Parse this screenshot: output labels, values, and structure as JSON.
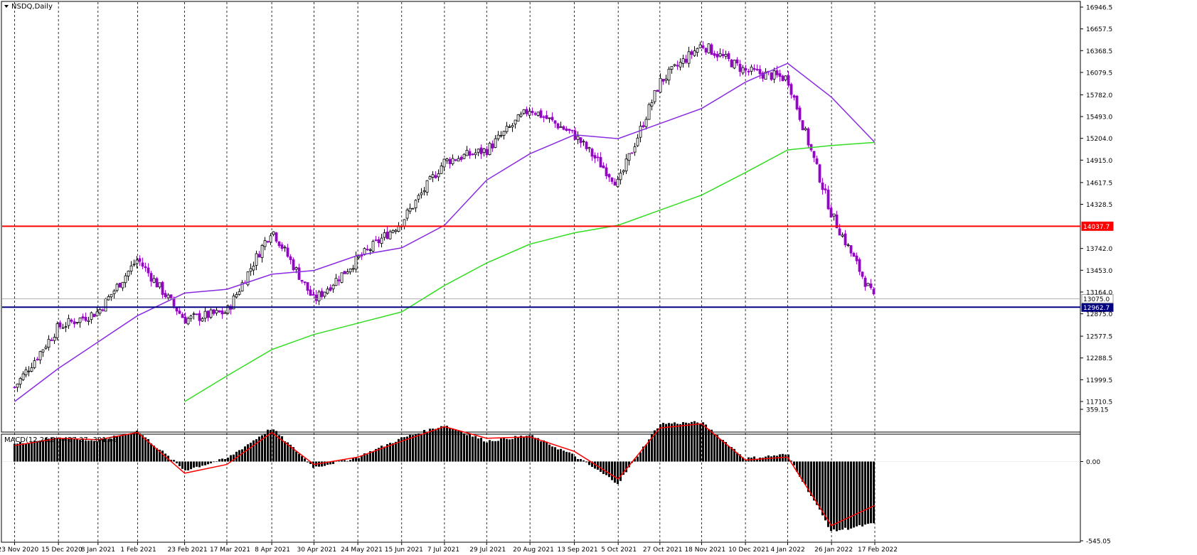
{
  "window": {
    "symbol_title": "NSDQ,Daily",
    "indicator_title": "MACD(12,26,9) -427.37 -301.69"
  },
  "colors": {
    "bull": "#000000",
    "bear": "#9900cc",
    "ma_purple": "#8a2be2",
    "ma_green": "#33dd22",
    "macd_signal": "#ff0000",
    "level_red": "#ff0000",
    "level_blue": "#000080"
  },
  "chart_data": [
    {
      "type": "candlestick",
      "title": "NSDQ,Daily",
      "ylim": [
        11710.5,
        16946.5
      ],
      "y_ticks": [
        "16946.5",
        "16657.5",
        "16368.5",
        "16079.5",
        "15782.0",
        "15493.0",
        "15204.0",
        "14915.0",
        "14617.5",
        "14328.5",
        "14037.7",
        "13742.0",
        "13453.0",
        "13164.0",
        "13075.0",
        "12962.7",
        "12875.0",
        "12577.5",
        "12288.5",
        "11999.5",
        "11710.5"
      ],
      "x_ticks": [
        "23 Nov 2020",
        "15 Dec 2020",
        "8 Jan 2021",
        "1 Feb 2021",
        "23 Feb 2021",
        "17 Mar 2021",
        "8 Apr 2021",
        "30 Apr 2021",
        "24 May 2021",
        "15 Jun 2021",
        "7 Jul 2021",
        "29 Jul 2021",
        "20 Aug 2021",
        "13 Sep 2021",
        "5 Oct 2021",
        "27 Oct 2021",
        "18 Nov 2021",
        "10 Dec 2021",
        "4 Jan 2022",
        "26 Jan 2022",
        "17 Feb 2022"
      ],
      "levels": [
        {
          "price": 14037.7,
          "label": "14037.7",
          "color": "#ff0000"
        },
        {
          "price": 12962.7,
          "label": "12962.7",
          "color": "#000080"
        },
        {
          "price": 13075.0,
          "label": "13075.0",
          "color": "#999999"
        }
      ],
      "close_path": [
        [
          "23 Nov 2020",
          11900
        ],
        [
          "15 Dec 2020",
          12700
        ],
        [
          "8 Jan 2021",
          12900
        ],
        [
          "1 Feb 2021",
          13600
        ],
        [
          "23 Feb 2021",
          12800
        ],
        [
          "17 Mar 2021",
          12900
        ],
        [
          "8 Apr 2021",
          14000
        ],
        [
          "30 Apr 2021",
          13050
        ],
        [
          "24 May 2021",
          13600
        ],
        [
          "15 Jun 2021",
          14100
        ],
        [
          "7 Jul 2021",
          14900
        ],
        [
          "29 Jul 2021",
          15050
        ],
        [
          "20 Aug 2021",
          15600
        ],
        [
          "13 Sep 2021",
          15250
        ],
        [
          "5 Oct 2021",
          14600
        ],
        [
          "27 Oct 2021",
          15950
        ],
        [
          "18 Nov 2021",
          16450
        ],
        [
          "10 Dec 2021",
          16100
        ],
        [
          "4 Jan 2022",
          16000
        ],
        [
          "26 Jan 2022",
          14200
        ],
        [
          "17 Feb 2022",
          13050
        ]
      ],
      "series": [
        {
          "name": "",
          "color": "#8a2be2",
          "values": [
            [
              "23 Nov 2020",
              11710
            ],
            [
              "15 Dec 2020",
              12150
            ],
            [
              "8 Jan 2021",
              12500
            ],
            [
              "1 Feb 2021",
              12850
            ],
            [
              "23 Feb 2021",
              13150
            ],
            [
              "17 Mar 2021",
              13200
            ],
            [
              "8 Apr 2021",
              13400
            ],
            [
              "30 Apr 2021",
              13450
            ],
            [
              "24 May 2021",
              13650
            ],
            [
              "15 Jun 2021",
              13750
            ],
            [
              "7 Jul 2021",
              14050
            ],
            [
              "29 Jul 2021",
              14650
            ],
            [
              "20 Aug 2021",
              15000
            ],
            [
              "13 Sep 2021",
              15250
            ],
            [
              "5 Oct 2021",
              15200
            ],
            [
              "27 Oct 2021",
              15400
            ],
            [
              "18 Nov 2021",
              15600
            ],
            [
              "10 Dec 2021",
              15950
            ],
            [
              "4 Jan 2022",
              16200
            ],
            [
              "26 Jan 2022",
              15750
            ],
            [
              "17 Feb 2022",
              15150
            ]
          ]
        },
        {
          "name": "",
          "color": "#33dd22",
          "values": [
            [
              "23 Feb 2021",
              11710
            ],
            [
              "17 Mar 2021",
              12050
            ],
            [
              "8 Apr 2021",
              12400
            ],
            [
              "30 Apr 2021",
              12600
            ],
            [
              "24 May 2021",
              12750
            ],
            [
              "15 Jun 2021",
              12900
            ],
            [
              "7 Jul 2021",
              13250
            ],
            [
              "29 Jul 2021",
              13550
            ],
            [
              "20 Aug 2021",
              13800
            ],
            [
              "13 Sep 2021",
              13950
            ],
            [
              "5 Oct 2021",
              14050
            ],
            [
              "27 Oct 2021",
              14250
            ],
            [
              "18 Nov 2021",
              14450
            ],
            [
              "10 Dec 2021",
              14750
            ],
            [
              "4 Jan 2022",
              15050
            ],
            [
              "26 Jan 2022",
              15110
            ],
            [
              "17 Feb 2022",
              15150
            ]
          ]
        }
      ]
    },
    {
      "type": "bar",
      "title": "MACD(12,26,9) -427.37 -301.69",
      "ylim": [
        -545.05,
        359.15
      ],
      "y_ticks": [
        "359.15",
        "0.00",
        "-545.05"
      ],
      "series": [
        {
          "name": "MACD",
          "color": "#000000",
          "values": [
            [
              "23 Nov 2020",
              120
            ],
            [
              "15 Dec 2020",
              170
            ],
            [
              "8 Jan 2021",
              140
            ],
            [
              "1 Feb 2021",
              210
            ],
            [
              "23 Feb 2021",
              -60
            ],
            [
              "17 Mar 2021",
              20
            ],
            [
              "8 Apr 2021",
              230
            ],
            [
              "30 Apr 2021",
              -40
            ],
            [
              "24 May 2021",
              30
            ],
            [
              "15 Jun 2021",
              160
            ],
            [
              "7 Jul 2021",
              250
            ],
            [
              "29 Jul 2021",
              140
            ],
            [
              "20 Aug 2021",
              180
            ],
            [
              "13 Sep 2021",
              40
            ],
            [
              "5 Oct 2021",
              -150
            ],
            [
              "27 Oct 2021",
              260
            ],
            [
              "18 Nov 2021",
              270
            ],
            [
              "10 Dec 2021",
              20
            ],
            [
              "4 Jan 2022",
              50
            ],
            [
              "26 Jan 2022",
              -480
            ],
            [
              "17 Feb 2022",
              -427.37
            ]
          ]
        },
        {
          "name": "Signal",
          "color": "#ff0000",
          "values": [
            [
              "23 Nov 2020",
              110
            ],
            [
              "15 Dec 2020",
              160
            ],
            [
              "8 Jan 2021",
              150
            ],
            [
              "1 Feb 2021",
              200
            ],
            [
              "23 Feb 2021",
              -80
            ],
            [
              "17 Mar 2021",
              -20
            ],
            [
              "8 Apr 2021",
              200
            ],
            [
              "30 Apr 2021",
              -20
            ],
            [
              "24 May 2021",
              30
            ],
            [
              "15 Jun 2021",
              140
            ],
            [
              "7 Jul 2021",
              240
            ],
            [
              "29 Jul 2021",
              160
            ],
            [
              "20 Aug 2021",
              170
            ],
            [
              "13 Sep 2021",
              70
            ],
            [
              "5 Oct 2021",
              -120
            ],
            [
              "27 Oct 2021",
              230
            ],
            [
              "18 Nov 2021",
              260
            ],
            [
              "10 Dec 2021",
              10
            ],
            [
              "4 Jan 2022",
              30
            ],
            [
              "26 Jan 2022",
              -440
            ],
            [
              "17 Feb 2022",
              -301.69
            ]
          ]
        }
      ]
    }
  ]
}
